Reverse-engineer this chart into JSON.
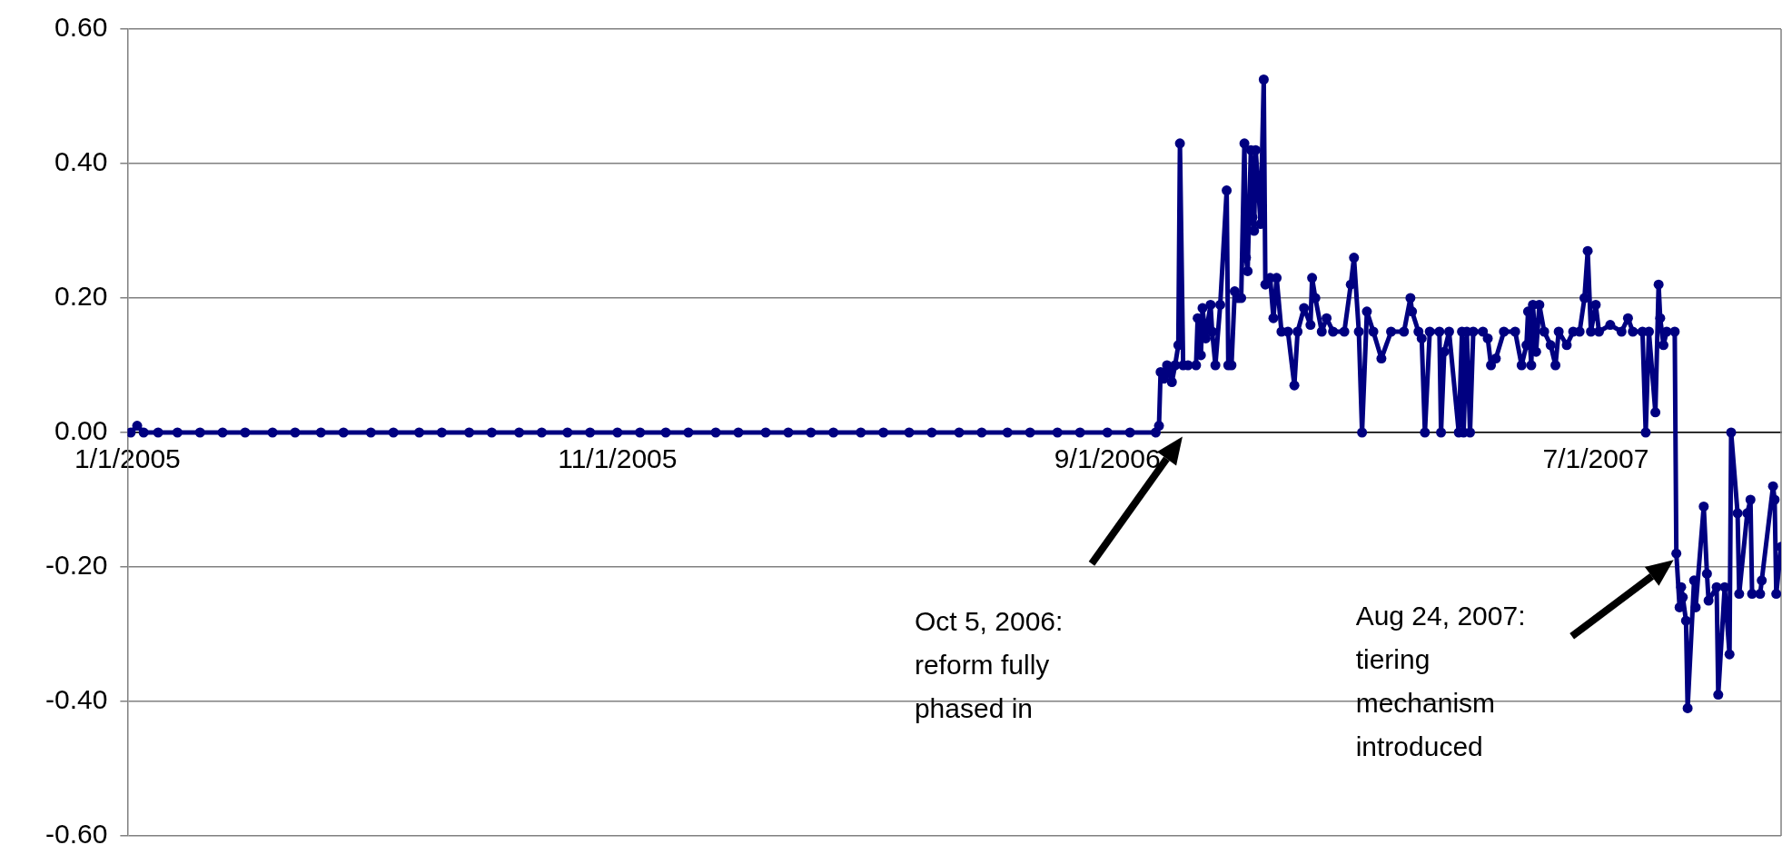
{
  "chart_data": {
    "type": "line",
    "x": [
      "2005-01-03",
      "2005-01-07",
      "2005-01-11",
      "2005-01-20",
      "2005-02-01",
      "2005-02-15",
      "2005-03-01",
      "2005-03-15",
      "2005-04-01",
      "2005-04-15",
      "2005-05-01",
      "2005-05-15",
      "2005-06-01",
      "2005-06-15",
      "2005-07-01",
      "2005-07-15",
      "2005-08-01",
      "2005-08-15",
      "2005-09-01",
      "2005-09-15",
      "2005-10-01",
      "2005-10-15",
      "2005-11-01",
      "2005-11-15",
      "2005-12-01",
      "2005-12-15",
      "2006-01-01",
      "2006-01-15",
      "2006-02-01",
      "2006-02-15",
      "2006-03-01",
      "2006-03-15",
      "2006-04-01",
      "2006-04-15",
      "2006-05-01",
      "2006-05-15",
      "2006-06-01",
      "2006-06-15",
      "2006-07-01",
      "2006-07-15",
      "2006-08-01",
      "2006-08-15",
      "2006-09-01",
      "2006-09-15",
      "2006-10-01",
      "2006-10-03",
      "2006-10-04",
      "2006-10-06",
      "2006-10-08",
      "2006-10-09",
      "2006-10-11",
      "2006-10-13",
      "2006-10-15",
      "2006-10-16",
      "2006-10-18",
      "2006-10-21",
      "2006-10-26",
      "2006-10-27",
      "2006-10-29",
      "2006-10-30",
      "2006-11-01",
      "2006-11-02",
      "2006-11-04",
      "2006-11-05",
      "2006-11-07",
      "2006-11-10",
      "2006-11-14",
      "2006-11-15",
      "2006-11-17",
      "2006-11-19",
      "2006-11-21",
      "2006-11-23",
      "2006-11-25",
      "2006-11-26",
      "2006-11-27",
      "2006-11-29",
      "2006-11-30",
      "2006-12-01",
      "2006-12-02",
      "2006-12-04",
      "2006-12-05",
      "2006-12-07",
      "2006-12-08",
      "2006-12-11",
      "2006-12-13",
      "2006-12-15",
      "2006-12-18",
      "2006-12-22",
      "2006-12-26",
      "2006-12-28",
      "2007-01-01",
      "2007-01-05",
      "2007-01-06",
      "2007-01-08",
      "2007-01-12",
      "2007-01-15",
      "2007-01-19",
      "2007-01-26",
      "2007-01-30",
      "2007-02-01",
      "2007-02-04",
      "2007-02-06",
      "2007-02-09",
      "2007-02-13",
      "2007-02-18",
      "2007-02-24",
      "2007-03-04",
      "2007-03-08",
      "2007-03-09",
      "2007-03-13",
      "2007-03-15",
      "2007-03-17",
      "2007-03-20",
      "2007-03-26",
      "2007-03-27",
      "2007-03-29",
      "2007-04-01",
      "2007-04-07",
      "2007-04-09",
      "2007-04-10",
      "2007-04-12",
      "2007-04-14",
      "2007-04-16",
      "2007-04-22",
      "2007-04-25",
      "2007-04-27",
      "2007-04-30",
      "2007-05-05",
      "2007-05-12",
      "2007-05-16",
      "2007-05-19",
      "2007-05-20",
      "2007-05-22",
      "2007-05-23",
      "2007-05-25",
      "2007-05-27",
      "2007-05-30",
      "2007-06-03",
      "2007-06-06",
      "2007-06-08",
      "2007-06-13",
      "2007-06-17",
      "2007-06-21",
      "2007-06-24",
      "2007-06-26",
      "2007-06-28",
      "2007-07-01",
      "2007-07-03",
      "2007-07-10",
      "2007-07-17",
      "2007-07-21",
      "2007-07-24",
      "2007-07-30",
      "2007-08-01",
      "2007-08-03",
      "2007-08-07",
      "2007-08-09",
      "2007-08-10",
      "2007-08-12",
      "2007-08-14",
      "2007-08-19",
      "2007-08-20",
      "2007-08-22",
      "2007-08-23",
      "2007-08-24",
      "2007-08-26",
      "2007-08-27",
      "2007-08-31",
      "2007-09-01",
      "2007-09-06",
      "2007-09-08",
      "2007-09-09",
      "2007-09-14",
      "2007-09-15",
      "2007-09-19",
      "2007-09-22",
      "2007-09-23",
      "2007-09-27",
      "2007-09-28",
      "2007-10-03",
      "2007-10-05",
      "2007-10-06",
      "2007-10-11",
      "2007-10-12",
      "2007-10-19",
      "2007-10-20",
      "2007-10-21",
      "2007-10-24"
    ],
    "series": [
      {
        "color": "#000080",
        "values": [
          0,
          0.01,
          0,
          0,
          0,
          0,
          0,
          0,
          0,
          0,
          0,
          0,
          0,
          0,
          0,
          0,
          0,
          0,
          0,
          0,
          0,
          0,
          0,
          0,
          0,
          0,
          0,
          0,
          0,
          0,
          0,
          0,
          0,
          0,
          0,
          0,
          0,
          0,
          0,
          0,
          0,
          0,
          0,
          0,
          0,
          0.01,
          0.09,
          0.08,
          0.1,
          0.09,
          0.075,
          0.1,
          0.13,
          0.43,
          0.1,
          0.1,
          0.1,
          0.17,
          0.115,
          0.185,
          0.14,
          0.16,
          0.19,
          0.15,
          0.1,
          0.19,
          0.36,
          0.1,
          0.1,
          0.21,
          0.2,
          0.2,
          0.43,
          0.26,
          0.24,
          0.42,
          0.32,
          0.3,
          0.42,
          0.35,
          0.31,
          0.525,
          0.22,
          0.23,
          0.17,
          0.23,
          0.15,
          0.15,
          0.07,
          0.15,
          0.185,
          0.16,
          0.23,
          0.2,
          0.15,
          0.17,
          0.15,
          0.15,
          0.22,
          0.26,
          0.15,
          0.0,
          0.18,
          0.15,
          0.11,
          0.15,
          0.15,
          0.2,
          0.18,
          0.15,
          0.14,
          0.0,
          0.15,
          0.15,
          0.0,
          0.12,
          0.15,
          0.0,
          0.15,
          0.0,
          0.15,
          0.0,
          0.15,
          0.15,
          0.14,
          0.1,
          0.11,
          0.15,
          0.15,
          0.1,
          0.13,
          0.18,
          0.1,
          0.19,
          0.12,
          0.19,
          0.15,
          0.13,
          0.1,
          0.15,
          0.13,
          0.15,
          0.15,
          0.2,
          0.27,
          0.15,
          0.19,
          0.15,
          0.16,
          0.15,
          0.17,
          0.15,
          0.15,
          0.0,
          0.15,
          0.03,
          0.22,
          0.17,
          0.13,
          0.15,
          0.15,
          -0.18,
          -0.26,
          -0.23,
          -0.245,
          -0.28,
          -0.41,
          -0.22,
          -0.26,
          -0.11,
          -0.21,
          -0.25,
          -0.23,
          -0.39,
          -0.23,
          -0.33,
          0.0,
          -0.12,
          -0.24,
          -0.12,
          -0.1,
          -0.24,
          -0.24,
          -0.22,
          -0.08,
          -0.1,
          -0.24,
          -0.17
        ]
      }
    ],
    "xlim": [
      "2005-01-01",
      "2007-10-24"
    ],
    "xticks": [
      {
        "value": "2005-01-01",
        "label": "1/1/2005"
      },
      {
        "value": "2005-11-01",
        "label": "11/1/2005"
      },
      {
        "value": "2006-09-01",
        "label": "9/1/2006"
      },
      {
        "value": "2007-07-01",
        "label": "7/1/2007"
      }
    ],
    "ylim": [
      -0.6,
      0.6
    ],
    "yticks": [
      {
        "value": -0.6,
        "label": "-0.60"
      },
      {
        "value": -0.4,
        "label": "-0.40"
      },
      {
        "value": -0.2,
        "label": "-0.20"
      },
      {
        "value": 0,
        "label": "0.00"
      },
      {
        "value": 0.2,
        "label": "0.20"
      },
      {
        "value": 0.4,
        "label": "0.40"
      },
      {
        "value": 0.6,
        "label": "0.60"
      }
    ],
    "grid": "y",
    "legend": false,
    "marker": "circle",
    "line_style": "solid",
    "annotations": [
      "Oct 5, 2006:\nreform fully\nphased in",
      "Aug 24, 2007:\ntiering\nmechanism\nintroduced"
    ]
  }
}
